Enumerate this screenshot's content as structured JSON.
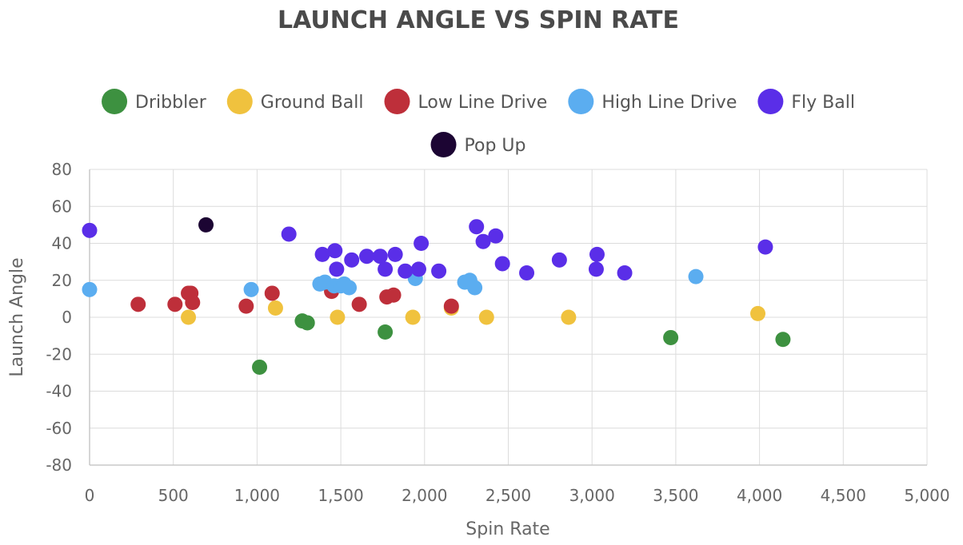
{
  "chart_data": {
    "type": "scatter",
    "title": "LAUNCH ANGLE VS SPIN RATE",
    "xlabel": "Spin Rate",
    "ylabel": "Launch Angle",
    "xlim": [
      0,
      5000
    ],
    "ylim": [
      -80,
      80
    ],
    "x_ticks": [
      0,
      500,
      1000,
      1500,
      2000,
      2500,
      3000,
      3500,
      4000,
      4500,
      5000
    ],
    "x_tick_labels": [
      "0",
      "500",
      "1,000",
      "1,500",
      "2,000",
      "2,500",
      "3,000",
      "3,500",
      "4,000",
      "4,500",
      "5,000"
    ],
    "y_ticks": [
      80,
      60,
      40,
      20,
      0,
      -20,
      -40,
      -60,
      -80
    ],
    "y_tick_labels": [
      "80",
      "60",
      "40",
      "20",
      "0",
      "-20",
      "-40",
      "-60",
      "-80"
    ],
    "grid": true,
    "legend_position": "top",
    "series": [
      {
        "name": "Dribbler",
        "color": "#3d9140",
        "points": [
          [
            1015,
            -27
          ],
          [
            1270,
            -2
          ],
          [
            1300,
            -3
          ],
          [
            1765,
            -8
          ],
          [
            3470,
            -11
          ],
          [
            4140,
            -12
          ]
        ]
      },
      {
        "name": "Ground Ball",
        "color": "#f0c23e",
        "points": [
          [
            590,
            0
          ],
          [
            1110,
            5
          ],
          [
            1480,
            0
          ],
          [
            1930,
            0
          ],
          [
            2160,
            5
          ],
          [
            2370,
            0
          ],
          [
            2860,
            0
          ],
          [
            3990,
            2
          ]
        ]
      },
      {
        "name": "Low Line Drive",
        "color": "#be2f3a",
        "points": [
          [
            290,
            7
          ],
          [
            510,
            7
          ],
          [
            590,
            13
          ],
          [
            605,
            13
          ],
          [
            615,
            8
          ],
          [
            935,
            6
          ],
          [
            1090,
            13
          ],
          [
            1445,
            14
          ],
          [
            1610,
            7
          ],
          [
            1775,
            11
          ],
          [
            1815,
            12
          ],
          [
            2160,
            6
          ]
        ]
      },
      {
        "name": "High Line Drive",
        "color": "#5badf0",
        "points": [
          [
            0,
            15
          ],
          [
            965,
            15
          ],
          [
            1375,
            18
          ],
          [
            1405,
            19
          ],
          [
            1460,
            17
          ],
          [
            1500,
            17
          ],
          [
            1520,
            18
          ],
          [
            1550,
            16
          ],
          [
            1945,
            21
          ],
          [
            2240,
            19
          ],
          [
            2270,
            20
          ],
          [
            2300,
            16
          ],
          [
            3620,
            22
          ]
        ]
      },
      {
        "name": "Fly Ball",
        "color": "#5a2ee8",
        "points": [
          [
            0,
            47
          ],
          [
            1190,
            45
          ],
          [
            1390,
            34
          ],
          [
            1465,
            36
          ],
          [
            1475,
            26
          ],
          [
            1565,
            31
          ],
          [
            1655,
            33
          ],
          [
            1735,
            33
          ],
          [
            1765,
            26
          ],
          [
            1825,
            34
          ],
          [
            1885,
            25
          ],
          [
            1965,
            26
          ],
          [
            1980,
            40
          ],
          [
            2085,
            25
          ],
          [
            2310,
            49
          ],
          [
            2350,
            41
          ],
          [
            2425,
            44
          ],
          [
            2465,
            29
          ],
          [
            2610,
            24
          ],
          [
            2805,
            31
          ],
          [
            3025,
            26
          ],
          [
            3030,
            34
          ],
          [
            3195,
            24
          ],
          [
            4035,
            38
          ]
        ]
      },
      {
        "name": "Pop Up",
        "color": "#1c0533",
        "points": [
          [
            695,
            50
          ]
        ]
      }
    ]
  }
}
